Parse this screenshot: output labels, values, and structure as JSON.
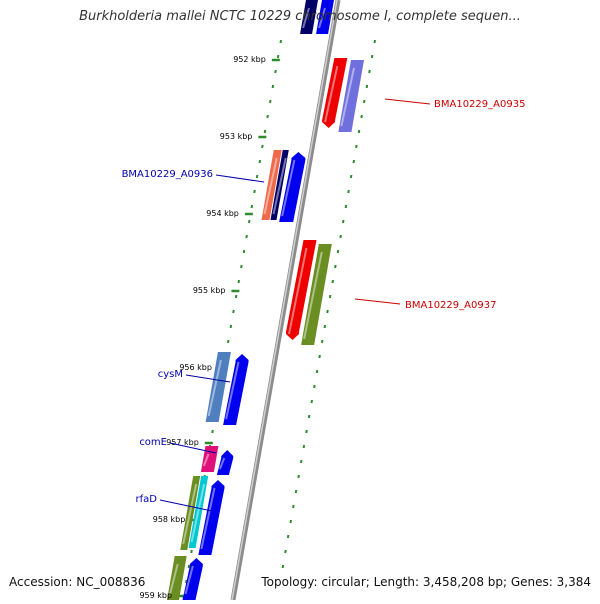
{
  "title": "Burkholderia mallei NCTC 10229 chromosome I, complete sequen...",
  "footer": {
    "accession": "Accession: NC_008836",
    "summary": "Topology: circular; Length: 3,458,208 bp; Genes: 3,384"
  },
  "ruler": {
    "ticks": [
      "952 kbp",
      "953 kbp",
      "954 kbp",
      "955 kbp",
      "956 kbp",
      "957 kbp",
      "958 kbp",
      "959 kbp"
    ]
  },
  "genes": [
    {
      "label": "BMA10229_A0935",
      "color": "#cc0000"
    },
    {
      "label": "BMA10229_A0936",
      "color": "#0000aa"
    },
    {
      "label": "BMA10229_A0937",
      "color": "#cc0000"
    },
    {
      "label": "cysM",
      "color": "#0000aa"
    },
    {
      "label": "comE",
      "color": "#0000aa"
    },
    {
      "label": "rfaD",
      "color": "#0000aa"
    }
  ],
  "colors": {
    "backbone": "#8c8c8c",
    "dotted_track": "#2e8b2e",
    "red": "#ee0000",
    "blue": "#0000ee",
    "navy": "#000066",
    "slate": "#6f6fdd",
    "olive": "#6b8e23",
    "steel": "#4f7fbf",
    "magenta": "#e0107a",
    "cyan": "#00c8d0",
    "salmon": "#ee6a4a"
  }
}
